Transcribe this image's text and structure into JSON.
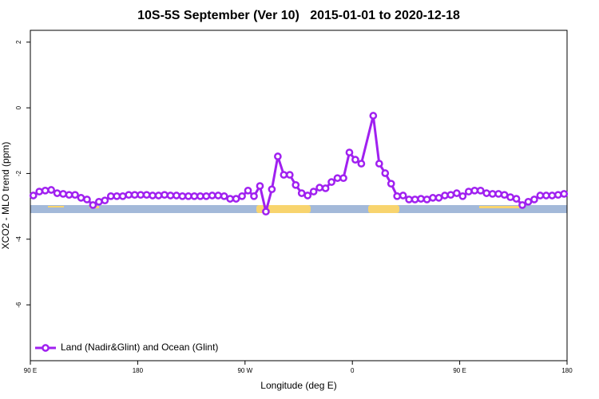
{
  "chart_data": {
    "type": "line",
    "title": "10S-5S September (Ver 10)   2015-01-01 to 2020-12-18",
    "x_label": "Longitude (deg E)",
    "y_label": "XCO2 - MLO trend (ppm)",
    "x": [
      92.5,
      97.5,
      102.5,
      107.5,
      112.5,
      117.5,
      122.5,
      127.5,
      132.5,
      137.5,
      142.5,
      147.5,
      152.5,
      157.5,
      162.5,
      167.5,
      172.5,
      177.5,
      182.5,
      187.5,
      192.5,
      197.5,
      202.5,
      207.5,
      212.5,
      217.5,
      222.5,
      227.5,
      232.5,
      237.5,
      242.5,
      247.5,
      252.5,
      257.5,
      262.5,
      267.5,
      272.5,
      277.5,
      282.5,
      287.5,
      292.5,
      297.5,
      302.5,
      307.5,
      312.5,
      317.5,
      322.5,
      327.5,
      332.5,
      337.5,
      342.5,
      347.5,
      352.5,
      357.5,
      362.5,
      367.5,
      377.5,
      382.5,
      387.5,
      392.5,
      397.5,
      402.5,
      407.5,
      412.5,
      417.5,
      422.5,
      427.5,
      432.5,
      437.5,
      442.5,
      447.5,
      452.5,
      457.5,
      462.5,
      467.5,
      472.5,
      477.5,
      482.5,
      487.5,
      492.5,
      497.5,
      502.5,
      507.5,
      512.5,
      517.5,
      522.5,
      527.5,
      532.5,
      537.5
    ],
    "series": [
      {
        "name": "Land (Nadir&Glint) and Ocean (Glint)",
        "color": "#a020f0",
        "values": [
          -2.67,
          -2.55,
          -2.52,
          -2.5,
          -2.6,
          -2.62,
          -2.65,
          -2.65,
          -2.74,
          -2.79,
          -2.96,
          -2.86,
          -2.82,
          -2.69,
          -2.69,
          -2.69,
          -2.65,
          -2.65,
          -2.65,
          -2.65,
          -2.67,
          -2.67,
          -2.65,
          -2.67,
          -2.67,
          -2.69,
          -2.69,
          -2.69,
          -2.69,
          -2.69,
          -2.67,
          -2.67,
          -2.69,
          -2.77,
          -2.77,
          -2.69,
          -2.52,
          -2.69,
          -2.38,
          -3.16,
          -2.48,
          -1.48,
          -2.04,
          -2.04,
          -2.35,
          -2.6,
          -2.67,
          -2.55,
          -2.43,
          -2.45,
          -2.26,
          -2.14,
          -2.14,
          -1.36,
          -1.58,
          -1.7,
          -0.24,
          -1.7,
          -1.99,
          -2.31,
          -2.69,
          -2.67,
          -2.79,
          -2.79,
          -2.77,
          -2.79,
          -2.74,
          -2.74,
          -2.67,
          -2.65,
          -2.6,
          -2.69,
          -2.55,
          -2.52,
          -2.52,
          -2.6,
          -2.62,
          -2.62,
          -2.65,
          -2.72,
          -2.77,
          -2.96,
          -2.86,
          -2.79,
          -2.67,
          -2.67,
          -2.67,
          -2.65,
          -2.62
        ]
      }
    ],
    "xlim": [
      90,
      540
    ],
    "xticks": [
      {
        "value": 90,
        "label": "90 E"
      },
      {
        "value": 180,
        "label": "180"
      },
      {
        "value": 270,
        "label": "90 W"
      },
      {
        "value": 360,
        "label": "0"
      },
      {
        "value": 450,
        "label": "90 E"
      },
      {
        "value": 540,
        "label": "180"
      }
    ],
    "ylim": [
      -7.7,
      2.36
    ],
    "yticks": [
      2,
      0,
      -2,
      -4,
      -6
    ],
    "legend": "bottom-left"
  }
}
